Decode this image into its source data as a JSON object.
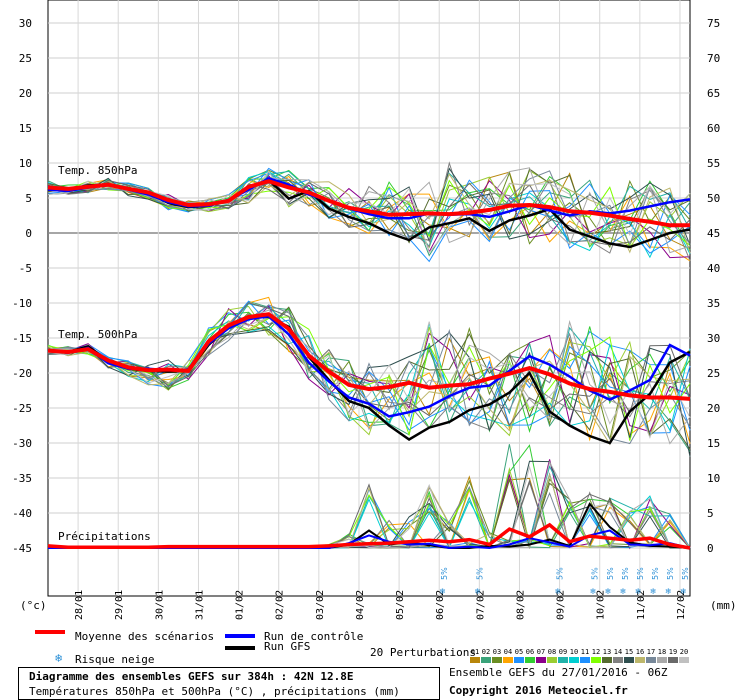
{
  "chart_data": {
    "type": "line",
    "title": "Diagramme des ensembles GEFS sur 384h : 42N 12.8E",
    "subtitle": "Températures 850hPa et 500hPa (°C) , précipitations (mm)",
    "ylabel_left": "(°c)",
    "ylabel_right": "(mm)",
    "y_left_ticks": [
      30,
      25,
      20,
      15,
      10,
      5,
      0,
      -5,
      -10,
      -15,
      -20,
      -25,
      -30,
      -35,
      -40,
      -45
    ],
    "y_right_ticks": [
      75,
      70,
      65,
      60,
      55,
      50,
      45,
      40,
      35,
      30,
      25,
      20,
      15,
      10,
      5,
      0
    ],
    "x_dates": [
      "28/01",
      "29/01",
      "30/01",
      "31/01",
      "01/02",
      "02/02",
      "03/02",
      "04/02",
      "05/02",
      "06/02",
      "07/02",
      "08/02",
      "09/02",
      "10/02",
      "11/02",
      "12/02"
    ],
    "x_hours_range": [
      0,
      384
    ],
    "panel_labels": {
      "t850": "Temp. 850hPa",
      "t500": "Temp. 500hPa",
      "precip": "Précipitations"
    },
    "snow_label": "5%",
    "snow_hours": [
      237,
      258,
      306,
      327,
      336,
      345,
      354,
      363,
      372,
      381
    ],
    "hours": [
      0,
      12,
      24,
      36,
      48,
      60,
      72,
      84,
      96,
      108,
      120,
      132,
      144,
      156,
      168,
      180,
      192,
      204,
      216,
      228,
      240,
      252,
      264,
      276,
      288,
      300,
      312,
      324,
      336,
      348,
      360,
      372,
      384
    ],
    "t850": {
      "mean": [
        6.5,
        6.3,
        6.6,
        6.9,
        6.3,
        5.8,
        4.7,
        4.0,
        4.1,
        4.6,
        6.6,
        7.4,
        6.5,
        5.8,
        4.6,
        3.6,
        3.1,
        2.6,
        2.7,
        2.8,
        2.7,
        2.9,
        3.3,
        3.9,
        4.0,
        3.7,
        3.1,
        2.9,
        2.5,
        2.0,
        1.6,
        1.1,
        1.1
      ],
      "control": [
        6.2,
        6.0,
        6.5,
        7.0,
        6.2,
        5.5,
        4.4,
        3.8,
        3.9,
        4.7,
        6.2,
        7.8,
        6.9,
        5.5,
        4.6,
        3.5,
        2.7,
        2.1,
        2.1,
        2.8,
        2.6,
        2.7,
        2.3,
        3.1,
        4.0,
        3.2,
        2.5,
        3.1,
        2.8,
        3.2,
        3.8,
        4.4,
        4.8
      ],
      "gfs": [
        6.1,
        6.2,
        6.8,
        6.9,
        6.4,
        5.7,
        4.3,
        3.7,
        3.9,
        4.7,
        6.4,
        7.6,
        4.9,
        6.0,
        3.5,
        2.3,
        1.4,
        0.0,
        -1.0,
        0.8,
        1.4,
        2.1,
        0.3,
        1.8,
        2.5,
        3.4,
        0.5,
        -0.5,
        -1.5,
        -2.0,
        -1.0,
        0.0,
        0.5
      ],
      "spread_high": [
        7.5,
        7.0,
        7.5,
        7.8,
        7.2,
        6.6,
        5.6,
        4.8,
        5.0,
        5.5,
        8.0,
        9.5,
        9.0,
        8.0,
        7.4,
        6.9,
        6.8,
        7.5,
        7.0,
        7.5,
        10.6,
        8.0,
        8.5,
        9.0,
        9.5,
        9.4,
        9.0,
        8.0,
        8.0,
        7.5,
        7.5,
        6.5,
        6.0
      ],
      "spread_low": [
        5.5,
        5.4,
        5.6,
        6.0,
        5.3,
        4.8,
        3.3,
        3.0,
        3.0,
        3.3,
        4.3,
        5.6,
        3.6,
        3.5,
        2.0,
        0.8,
        -0.2,
        -0.9,
        -1.5,
        -4.9,
        -1.4,
        -1.0,
        -1.5,
        -1.0,
        -1.6,
        -2.0,
        -2.3,
        -2.5,
        -3.0,
        -3.2,
        -3.5,
        -3.8,
        -4.0
      ]
    },
    "t500": {
      "mean": [
        -16.8,
        -17.0,
        -16.6,
        -18.2,
        -19.2,
        -19.6,
        -19.5,
        -19.7,
        -15.5,
        -13.2,
        -12.0,
        -11.6,
        -13.7,
        -17.5,
        -19.8,
        -21.7,
        -22.3,
        -22.0,
        -21.4,
        -22.1,
        -21.8,
        -21.6,
        -20.8,
        -20.1,
        -19.3,
        -20.2,
        -21.5,
        -22.3,
        -22.7,
        -23.2,
        -23.5,
        -23.5,
        -23.7
      ],
      "control": [
        -16.8,
        -17.1,
        -16.4,
        -18.6,
        -19.4,
        -19.4,
        -19.6,
        -19.5,
        -15.8,
        -13.6,
        -12.3,
        -11.9,
        -14.5,
        -18.5,
        -21.2,
        -23.5,
        -24.4,
        -26.2,
        -25.6,
        -24.8,
        -23.3,
        -22.1,
        -21.8,
        -19.7,
        -17.6,
        -18.8,
        -20.5,
        -22.5,
        -23.8,
        -22.5,
        -21.0,
        -16.0,
        -17.5
      ],
      "gfs": [
        -16.8,
        -17.0,
        -16.2,
        -18.3,
        -19.4,
        -19.7,
        -19.8,
        -19.7,
        -16.0,
        -13.2,
        -12.0,
        -12.0,
        -13.4,
        -17.7,
        -21.0,
        -24.0,
        -25.0,
        -27.5,
        -29.5,
        -27.8,
        -27.0,
        -25.3,
        -24.5,
        -22.8,
        -20.0,
        -25.5,
        -27.5,
        -29.0,
        -30.0,
        -25.5,
        -23.0,
        -18.5,
        -17.0
      ],
      "spread_high": [
        -16.0,
        -16.2,
        -15.8,
        -17.5,
        -18.2,
        -18.5,
        -18.0,
        -18.0,
        -13.5,
        -10.5,
        -9.5,
        -9.0,
        -10.5,
        -13.5,
        -16.5,
        -18.0,
        -18.5,
        -18.5,
        -17.5,
        -12.5,
        -13.0,
        -13.5,
        -17.0,
        -17.0,
        -14.5,
        -14.0,
        -12.5,
        -13.0,
        -13.5,
        -15.0,
        -16.0,
        -15.0,
        -15.5
      ],
      "spread_low": [
        -17.5,
        -17.8,
        -17.3,
        -19.3,
        -20.5,
        -21.8,
        -22.5,
        -21.0,
        -17.5,
        -15.5,
        -14.5,
        -15.0,
        -17.0,
        -21.0,
        -24.5,
        -27.0,
        -29.5,
        -28.5,
        -29.0,
        -28.0,
        -27.5,
        -27.5,
        -28.5,
        -29.0,
        -29.0,
        -29.0,
        -28.5,
        -30.0,
        -30.5,
        -31.0,
        -30.5,
        -31.5,
        -32.0
      ]
    },
    "precip": {
      "mean": [
        0.3,
        0.1,
        0.1,
        0.1,
        0.1,
        0.1,
        0.2,
        0.2,
        0.2,
        0.2,
        0.2,
        0.2,
        0.2,
        0.2,
        0.3,
        0.5,
        0.6,
        0.7,
        0.9,
        1.1,
        0.9,
        1.2,
        0.5,
        2.7,
        1.6,
        3.3,
        0.9,
        1.7,
        1.4,
        1.1,
        1.4,
        0.5,
        0.0
      ],
      "control": [
        0.0,
        0.0,
        0.0,
        0.0,
        0.0,
        0.0,
        0.0,
        0.0,
        0.0,
        0.0,
        0.0,
        0.0,
        0.0,
        0.0,
        0.0,
        0.7,
        1.8,
        0.9,
        0.5,
        0.6,
        0.0,
        0.2,
        0.0,
        0.5,
        1.4,
        0.8,
        0.2,
        1.8,
        2.5,
        0.5,
        0.4,
        0.7,
        0.0
      ],
      "gfs": [
        0.0,
        0.0,
        0.0,
        0.0,
        0.0,
        0.0,
        0.0,
        0.0,
        0.0,
        0.0,
        0.0,
        0.0,
        0.0,
        0.0,
        0.0,
        0.5,
        2.5,
        0.5,
        0.8,
        0.4,
        0.0,
        0.0,
        0.3,
        0.2,
        0.5,
        1.2,
        0.3,
        6.3,
        3.0,
        0.8,
        0.3,
        0.2,
        0.0
      ],
      "max": [
        0.5,
        0.2,
        0.2,
        0.2,
        0.2,
        0.2,
        0.3,
        0.3,
        0.3,
        0.3,
        0.3,
        0.3,
        0.3,
        0.3,
        0.5,
        2.0,
        9.8,
        4.0,
        4.5,
        9.0,
        4.0,
        11.0,
        2.5,
        16.0,
        15.5,
        13.5,
        7.0,
        8.0,
        7.5,
        6.5,
        7.5,
        5.0,
        0.0
      ]
    }
  },
  "legend": {
    "mean_label": "Moyenne des scénarios",
    "control_label": "Run de contrôle",
    "gfs_label": "Run GFS",
    "snow_label": "Risque neige",
    "perturbations_label": "20 Perturbations",
    "perturbation_numbers": [
      "01",
      "02",
      "03",
      "04",
      "05",
      "06",
      "07",
      "08",
      "09",
      "10",
      "11",
      "12",
      "13",
      "14",
      "15",
      "16",
      "17",
      "18",
      "19",
      "20"
    ]
  },
  "footer": {
    "title": "Diagramme des ensembles GEFS sur 384h : 42N 12.8E",
    "subtitle": "Températures 850hPa et 500hPa (°C) , précipitations (mm)",
    "run_info": "Ensemble GEFS du 27/01/2016 - 06Z",
    "copyright": "Copyright 2016 Meteociel.fr"
  },
  "colors": {
    "mean": "#ff0000",
    "control": "#0000ff",
    "gfs": "#000000",
    "grid": "#aaaaaa",
    "snow": "#2a8fd6",
    "perturbations": [
      "#b8860b",
      "#3aa37a",
      "#6b8e23",
      "#ffa500",
      "#1e90ff",
      "#32cd32",
      "#8b008b",
      "#9acd32",
      "#20b2aa",
      "#00ced1",
      "#1e90ff",
      "#7fff00",
      "#556b2f",
      "#808080",
      "#2f4f4f",
      "#bdb76b",
      "#778899",
      "#a9a9a9",
      "#696969",
      "#c0c0c0"
    ]
  }
}
